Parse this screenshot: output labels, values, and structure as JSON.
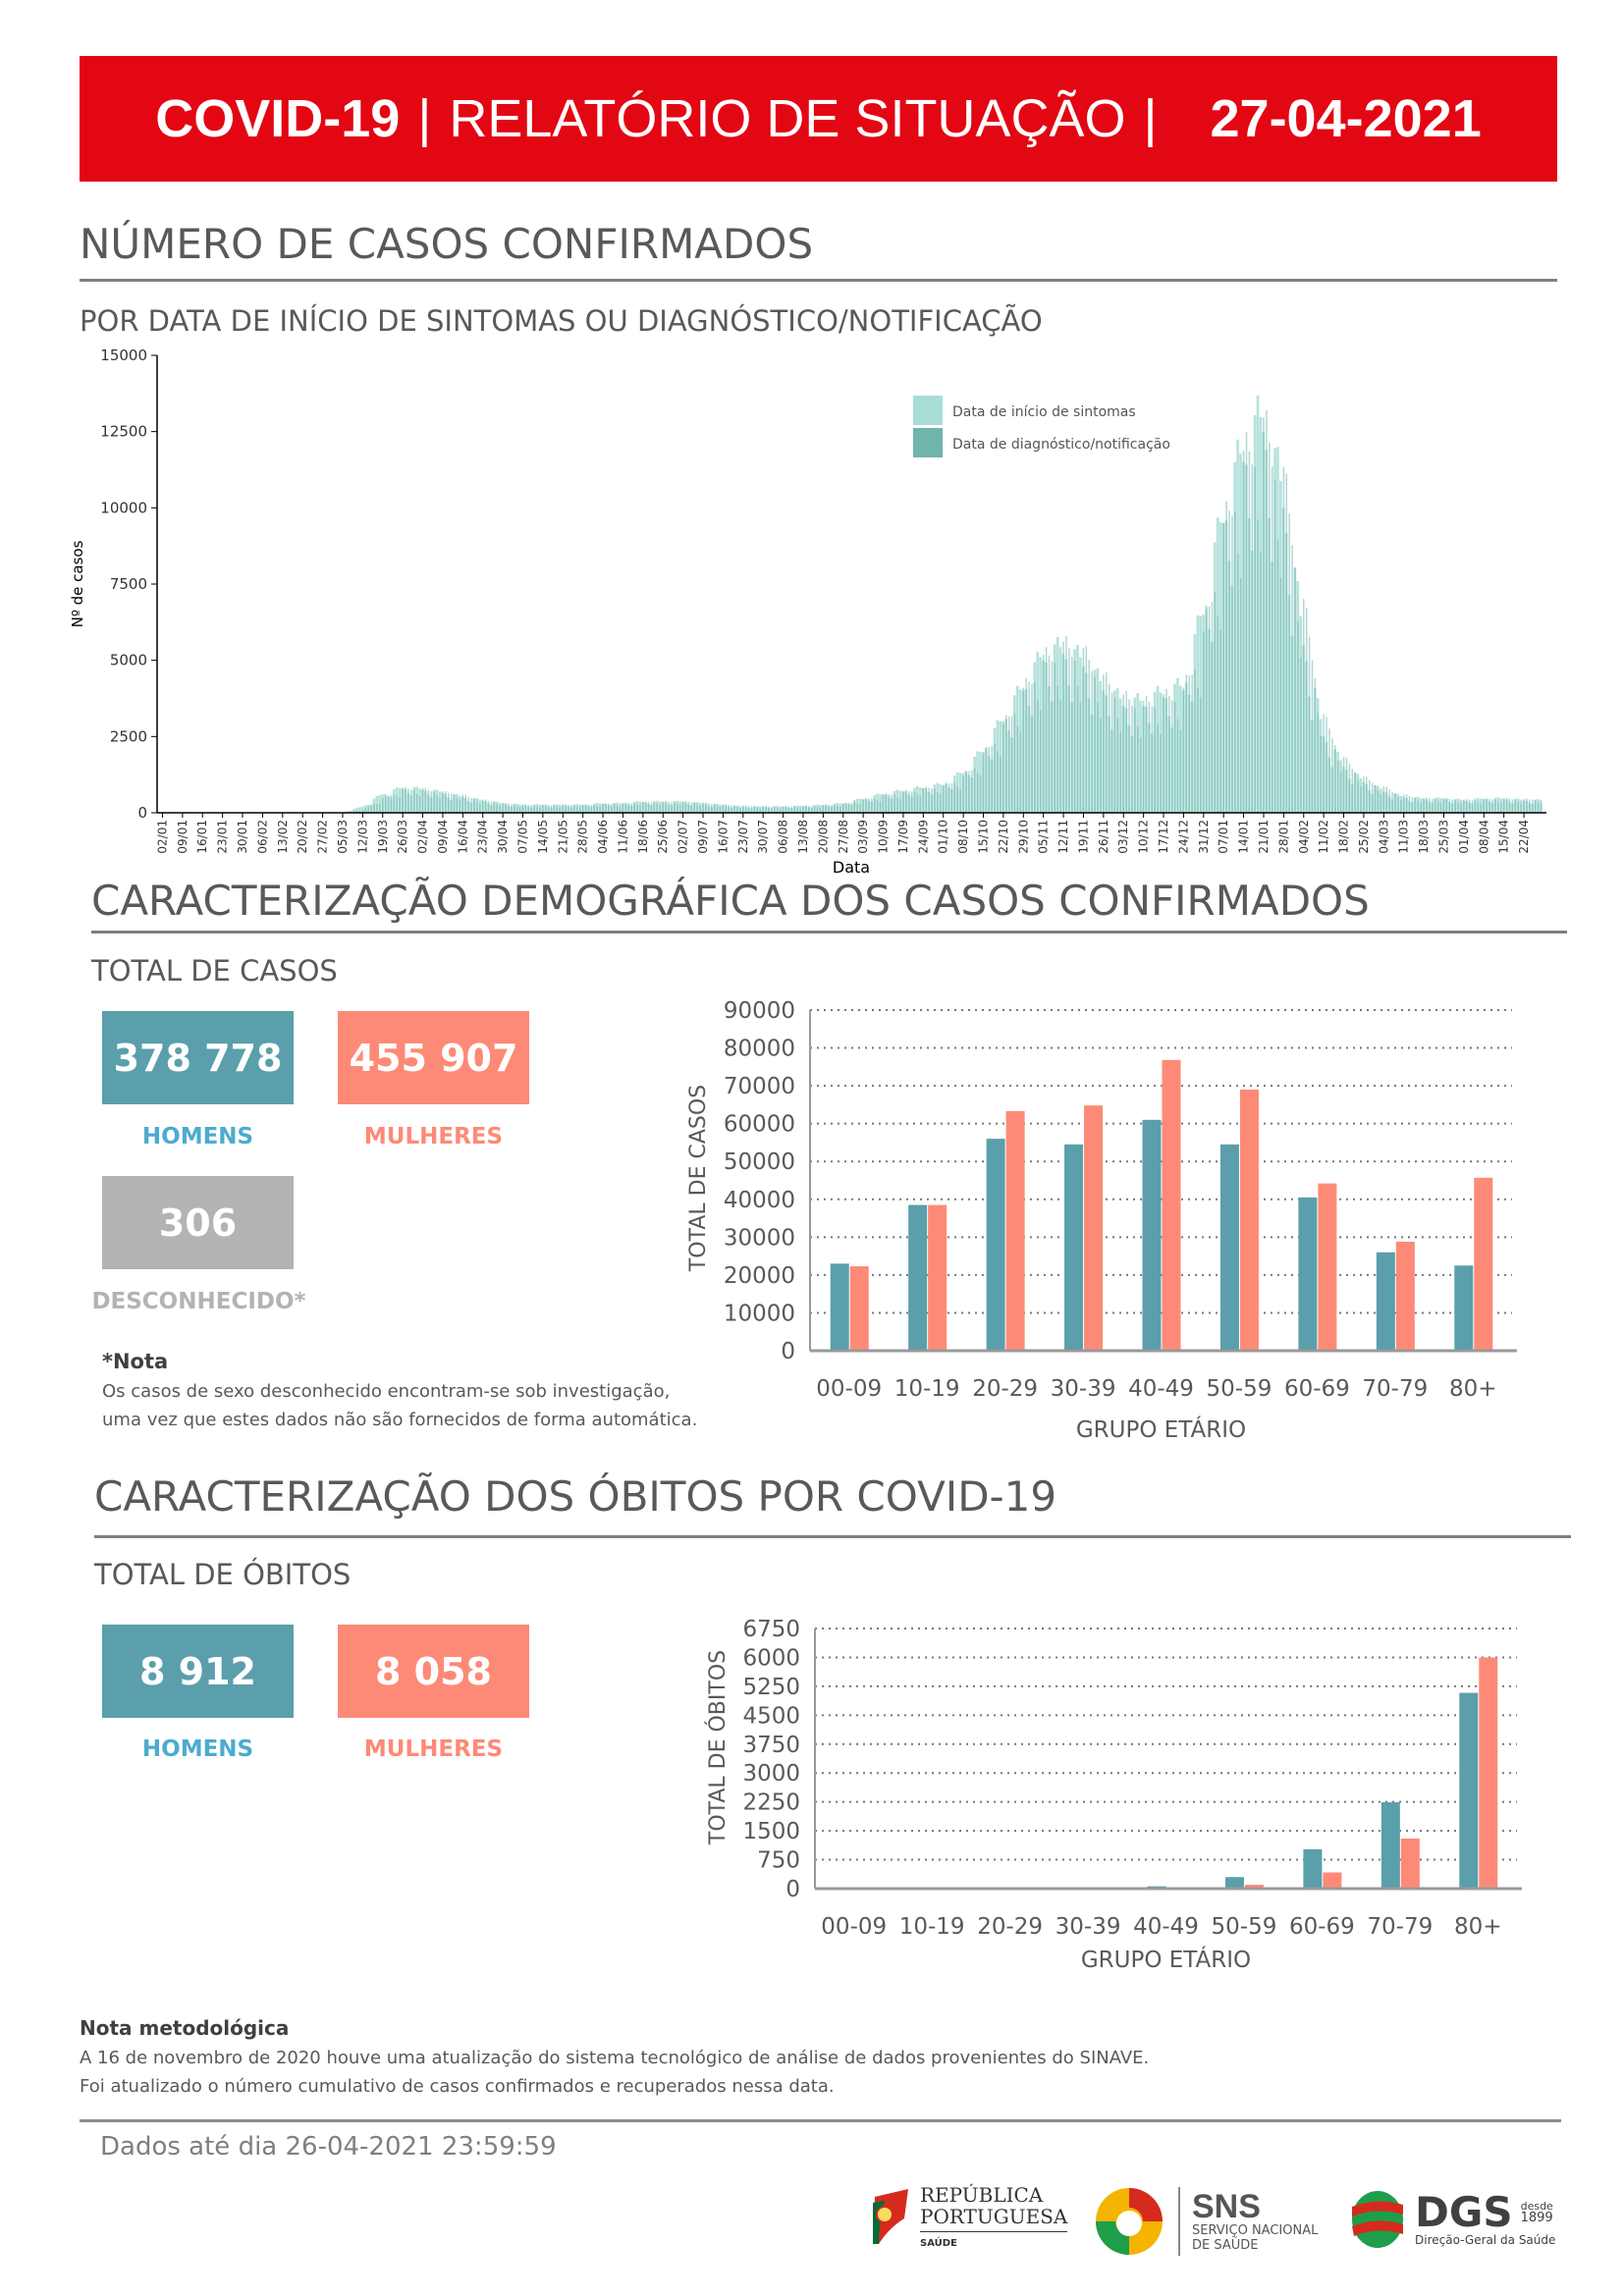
{
  "header": {
    "title_bold": "COVID-19",
    "separator": "|",
    "title_rest": "RELATÓRIO DE SITUAÇÃO",
    "separator2": "|",
    "date": "27-04-2021"
  },
  "section_cases": {
    "title": "NÚMERO DE CASOS CONFIRMADOS",
    "subtitle": "POR DATA DE INÍCIO DE SINTOMAS OU DIAGNÓSTICO/NOTIFICAÇÃO"
  },
  "section_demo": {
    "title": "CARACTERIZAÇÃO DEMOGRÁFICA DOS CASOS CONFIRMADOS",
    "subtitle": "TOTAL DE CASOS",
    "men_value": "378 778",
    "men_label": "HOMENS",
    "women_value": "455 907",
    "women_label": "MULHERES",
    "unknown_value": "306",
    "unknown_label": "DESCONHECIDO*",
    "note_title": "*Nota",
    "note_line1": "Os casos de sexo desconhecido encontram-se sob investigação,",
    "note_line2": "uma vez que estes dados não são fornecidos de forma automática."
  },
  "section_deaths": {
    "title": "CARACTERIZAÇÃO DOS ÓBITOS POR COVID-19",
    "subtitle": "TOTAL DE ÓBITOS",
    "men_value": "8 912",
    "men_label": "HOMENS",
    "women_value": "8 058",
    "women_label": "MULHERES"
  },
  "methodology": {
    "title": "Nota metodológica",
    "line1": "A 16 de novembro de 2020 houve uma atualização do sistema tecnológico de análise de dados provenientes do SINAVE.",
    "line2": "Foi atualizado o número cumulativo de casos confirmados e recuperados nessa data."
  },
  "footer": {
    "data_until": "Dados até dia 26-04-2021 23:59:59",
    "logo_rp_line1": "REPÚBLICA",
    "logo_rp_line2": "PORTUGUESA",
    "logo_rp_sub": "SAÚDE",
    "logo_sns": "SNS",
    "logo_sns_line1": "SERVIÇO NACIONAL",
    "logo_sns_line2": "DE SAÚDE",
    "logo_dgs": "DGS",
    "logo_dgs_since": "desde",
    "logo_dgs_year": "1899",
    "logo_dgs_sub": "Direção-Geral da Saúde"
  },
  "colors": {
    "banner": "#e30613",
    "men": "#5a9fab",
    "women": "#fd8a77",
    "symptoms": "#a8ddd5",
    "diagnosis": "#6fb5ad"
  },
  "chart_data": [
    {
      "type": "bar",
      "title": "",
      "xlabel": "Data",
      "ylabel": "Nº de casos",
      "ylim": [
        0,
        15000
      ],
      "yticks": [
        "0",
        "2500",
        "5000",
        "7500",
        "10000",
        "12500",
        "15000"
      ],
      "legend": [
        "Data de início de sintomas",
        "Data de diagnóstico/notificação"
      ],
      "legend_position": "top-right",
      "categories": [
        "02/01",
        "09/01",
        "16/01",
        "23/01",
        "30/01",
        "06/02",
        "13/02",
        "20/02",
        "27/02",
        "05/03",
        "12/03",
        "19/03",
        "26/03",
        "02/04",
        "09/04",
        "16/04",
        "23/04",
        "30/04",
        "07/05",
        "14/05",
        "21/05",
        "28/05",
        "04/06",
        "11/06",
        "18/06",
        "25/06",
        "02/07",
        "09/07",
        "16/07",
        "23/07",
        "30/07",
        "06/08",
        "13/08",
        "20/08",
        "27/08",
        "03/09",
        "10/09",
        "17/09",
        "24/09",
        "01/10",
        "08/10",
        "15/10",
        "22/10",
        "29/10",
        "05/11",
        "12/11",
        "19/11",
        "26/11",
        "03/12",
        "10/12",
        "17/12",
        "24/12",
        "31/12",
        "07/01",
        "14/01",
        "21/01",
        "28/01",
        "04/02",
        "11/02",
        "18/02",
        "25/02",
        "04/03",
        "11/03",
        "18/03",
        "25/03",
        "01/04",
        "08/04",
        "15/04",
        "22/04"
      ],
      "series": [
        {
          "name": "Data de início de sintomas",
          "values": [
            0,
            0,
            0,
            0,
            0,
            0,
            0,
            0,
            0,
            10,
            200,
            600,
            800,
            750,
            650,
            500,
            400,
            300,
            250,
            250,
            250,
            250,
            300,
            300,
            350,
            350,
            350,
            300,
            250,
            200,
            200,
            200,
            220,
            250,
            300,
            450,
            600,
            700,
            800,
            900,
            1300,
            2000,
            3000,
            4000,
            5000,
            5200,
            4800,
            4000,
            3500,
            3500,
            3800,
            4000,
            6500,
            9500,
            11500,
            12500,
            10000,
            5500,
            2500,
            1500,
            1000,
            700,
            500,
            450,
            450,
            400,
            450,
            450,
            400
          ]
        },
        {
          "name": "Data de diagnóstico/notificação",
          "values": [
            0,
            0,
            0,
            0,
            0,
            0,
            0,
            0,
            0,
            0,
            100,
            450,
            750,
            750,
            650,
            550,
            400,
            300,
            250,
            250,
            250,
            250,
            280,
            300,
            330,
            350,
            350,
            320,
            260,
            220,
            200,
            200,
            210,
            240,
            280,
            400,
            550,
            650,
            750,
            850,
            1100,
            1800,
            2700,
            3800,
            4800,
            5200,
            5000,
            4200,
            3600,
            3400,
            3600,
            3800,
            5500,
            8800,
            11000,
            12000,
            10500,
            6500,
            3000,
            1700,
            1100,
            800,
            550,
            450,
            450,
            400,
            420,
            450,
            420
          ]
        }
      ]
    },
    {
      "type": "bar",
      "title": "",
      "xlabel": "GRUPO ETÁRIO",
      "ylabel": "TOTAL DE CASOS",
      "ylim": [
        0,
        90000
      ],
      "yticks": [
        "0",
        "10000",
        "20000",
        "30000",
        "40000",
        "50000",
        "60000",
        "70000",
        "80000",
        "90000"
      ],
      "categories": [
        "00-09",
        "10-19",
        "20-29",
        "30-39",
        "40-49",
        "50-59",
        "60-69",
        "70-79",
        "80+"
      ],
      "series": [
        {
          "name": "Homens",
          "values": [
            23000,
            38500,
            56000,
            54500,
            61000,
            54500,
            40500,
            26000,
            22500
          ]
        },
        {
          "name": "Mulheres",
          "values": [
            22300,
            38500,
            63300,
            64800,
            76800,
            69000,
            44200,
            28800,
            45700
          ]
        }
      ]
    },
    {
      "type": "bar",
      "title": "",
      "xlabel": "GRUPO ETÁRIO",
      "ylabel": "TOTAL DE ÓBITOS",
      "ylim": [
        0,
        6750
      ],
      "yticks": [
        "0",
        "750",
        "1500",
        "2250",
        "3000",
        "3750",
        "4500",
        "5250",
        "6000",
        "6750"
      ],
      "categories": [
        "00-09",
        "10-19",
        "20-29",
        "30-39",
        "40-49",
        "50-59",
        "60-69",
        "70-79",
        "80+"
      ],
      "series": [
        {
          "name": "Homens",
          "values": [
            0,
            0,
            2,
            10,
            60,
            300,
            1020,
            2240,
            5080
          ]
        },
        {
          "name": "Mulheres",
          "values": [
            0,
            0,
            1,
            5,
            25,
            100,
            420,
            1300,
            6000
          ]
        }
      ]
    }
  ]
}
